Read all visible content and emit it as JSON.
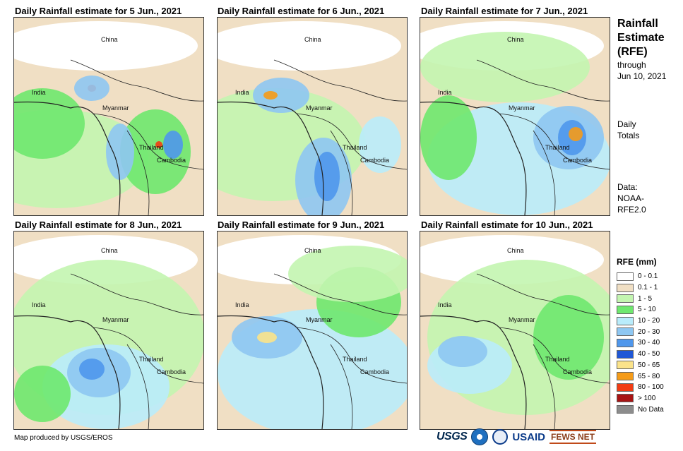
{
  "panels": [
    {
      "title": "Daily Rainfall estimate for 5 Jun., 2021",
      "labels": {
        "china": "China",
        "india": "India",
        "myanmar": "Myanmar",
        "thailand": "Thailand",
        "cambodia": "Cambodia"
      }
    },
    {
      "title": "Daily Rainfall estimate for 6 Jun., 2021",
      "labels": {
        "china": "China",
        "india": "India",
        "myanmar": "Myanmar",
        "thailand": "Thailand",
        "cambodia": "Cambodia"
      }
    },
    {
      "title": "Daily Rainfall estimate for 7 Jun., 2021",
      "labels": {
        "china": "China",
        "india": "India",
        "myanmar": "Myanmar",
        "thailand": "Thailand",
        "cambodia": "Cambodia"
      }
    },
    {
      "title": "Daily Rainfall estimate for 8 Jun., 2021",
      "labels": {
        "china": "China",
        "india": "India",
        "myanmar": "Myanmar",
        "thailand": "Thailand",
        "cambodia": "Cambodia"
      }
    },
    {
      "title": "Daily Rainfall estimate for 9 Jun., 2021",
      "labels": {
        "china": "China",
        "india": "India",
        "myanmar": "Myanmar",
        "thailand": "Thailand",
        "cambodia": "Cambodia"
      }
    },
    {
      "title": "Daily Rainfall estimate for 10 Jun., 2021",
      "labels": {
        "china": "China",
        "india": "India",
        "myanmar": "Myanmar",
        "thailand": "Thailand",
        "cambodia": "Cambodia"
      }
    }
  ],
  "sidebar": {
    "title_line1": "Rainfall",
    "title_line2": "Estimate",
    "title_line3": "(RFE)",
    "through": "through",
    "date": "Jun 10, 2021",
    "daily": "Daily",
    "totals": "Totals",
    "data_label": "Data:",
    "source1": "NOAA-",
    "source2": "RFE2.0"
  },
  "legend": {
    "title": "RFE (mm)",
    "items": [
      {
        "label": "0 - 0.1",
        "color": "#ffffff"
      },
      {
        "label": "0.1 - 1",
        "color": "#f0dfc4"
      },
      {
        "label": "1 - 5",
        "color": "#c3f5b0"
      },
      {
        "label": "5 - 10",
        "color": "#6ee86e"
      },
      {
        "label": "10 - 20",
        "color": "#b9ecfb"
      },
      {
        "label": "20 - 30",
        "color": "#8ec7f2"
      },
      {
        "label": "30 - 40",
        "color": "#4f97ec"
      },
      {
        "label": "40 - 50",
        "color": "#1f57d6"
      },
      {
        "label": "50 - 65",
        "color": "#fbe38a"
      },
      {
        "label": "65 - 80",
        "color": "#f59b18"
      },
      {
        "label": "80 - 100",
        "color": "#f23c14"
      },
      {
        "label": "> 100",
        "color": "#a81414"
      },
      {
        "label": "No Data",
        "color": "#8c8c8c"
      }
    ]
  },
  "footer": {
    "credit": "Map produced by USGS/EROS",
    "logo_usgs": "USGS",
    "logo_usaid": "USAID",
    "logo_fews": "FEWS NET"
  }
}
